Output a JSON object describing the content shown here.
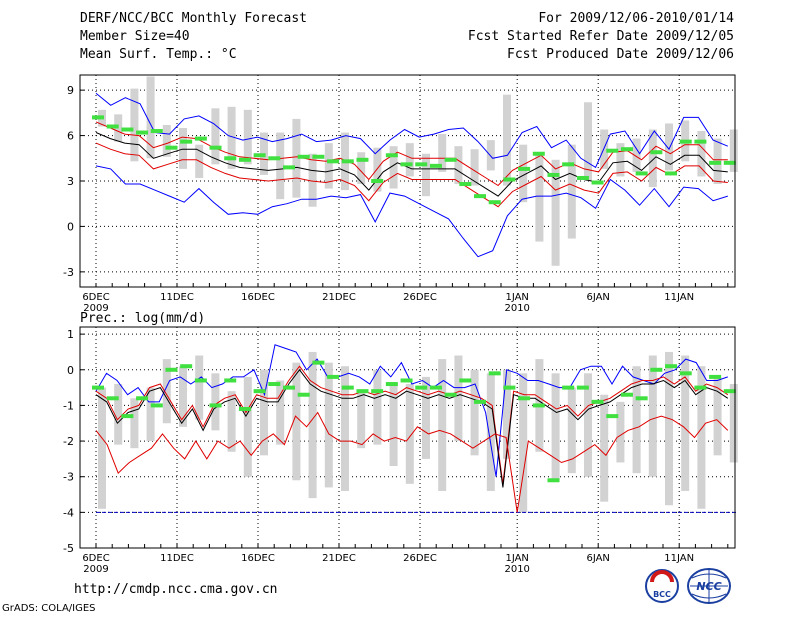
{
  "header": {
    "title": "DERF/NCC/BCC Monthly Forecast",
    "member_size": "Member Size=40",
    "variable_label": "Mean Surf. Temp.: °C",
    "forecast_period": "For 2009/12/06-2010/01/14",
    "refer_date": "Fcst Started Refer Date 2009/12/05",
    "produced_date": "Fcst Produced Date 2009/12/06"
  },
  "footer": {
    "url": "http://cmdp.ncc.cma.gov.cn",
    "grads_credit": "GrADS: COLA/IGES",
    "logo_left": "BCC",
    "logo_right": "NCC"
  },
  "colors": {
    "bar": "#d2d2d2",
    "green": "#40e040",
    "blue": "#0000ff",
    "red": "#e00000",
    "black": "#000000",
    "dash": "#0000c0"
  },
  "chart_data": [
    {
      "type": "line",
      "title": "Mean Surf. Temp.: °C",
      "ylim": [
        -4,
        10
      ],
      "yticks": [
        -3,
        0,
        3,
        6,
        9
      ],
      "xtick_days": [
        0,
        5,
        10,
        15,
        20,
        26,
        31,
        36
      ],
      "xtick_labels": [
        "6DEC",
        "11DEC",
        "16DEC",
        "21DEC",
        "26DEC",
        "1JAN",
        "6JAN",
        "11JAN"
      ],
      "xtick_sublabels": [
        "2009",
        "",
        "",
        "",
        "",
        "2010",
        "",
        ""
      ],
      "n_days": 40,
      "bars_low": [
        6.6,
        5.6,
        4.3,
        4.5,
        4.6,
        3.8,
        3.2,
        4.1,
        3.8,
        4.1,
        3.4,
        1.8,
        1.9,
        1.3,
        2.5,
        2.4,
        2.8,
        2.3,
        2.5,
        3.3,
        2.0,
        3.6,
        2.8,
        2.7,
        3.7,
        2.7,
        1.6,
        -1.0,
        -2.6,
        -0.8,
        3.0,
        3.8,
        3.3,
        3.6,
        2.6,
        3.7,
        4.3,
        3.3,
        2.8,
        3.6
      ],
      "bars_high": [
        7.7,
        7.4,
        9.1,
        9.9,
        6.7,
        6.5,
        5.4,
        7.8,
        7.9,
        7.7,
        6.2,
        6.2,
        7.1,
        4.8,
        5.5,
        6.2,
        4.9,
        5.2,
        5.3,
        5.5,
        4.8,
        6.1,
        5.3,
        5.1,
        5.7,
        8.7,
        5.4,
        4.9,
        4.4,
        5.4,
        8.2,
        6.4,
        5.5,
        5.8,
        6.4,
        6.8,
        7.0,
        6.3,
        5.8,
        6.4
      ],
      "series": [
        {
          "name": "ensemble max",
          "color": "#0000ff",
          "values": [
            8.8,
            8.0,
            8.5,
            8.1,
            6.2,
            6.1,
            7.1,
            7.3,
            6.8,
            6.0,
            5.7,
            5.9,
            5.6,
            5.8,
            6.1,
            5.6,
            5.7,
            6.0,
            5.8,
            4.8,
            5.7,
            6.4,
            5.9,
            6.1,
            6.4,
            6.5,
            5.6,
            4.5,
            4.7,
            6.2,
            6.6,
            5.2,
            5.7,
            4.5,
            3.9,
            6.1,
            6.3,
            4.8,
            6.3,
            5.1,
            7.2,
            7.2,
            5.7,
            5.3
          ]
        },
        {
          "name": "upper spread",
          "color": "#e00000",
          "values": [
            6.9,
            6.5,
            6.1,
            6.0,
            5.2,
            5.5,
            5.9,
            5.8,
            5.3,
            4.9,
            4.6,
            4.5,
            4.4,
            4.5,
            4.6,
            4.4,
            4.3,
            4.5,
            4.1,
            3.1,
            4.3,
            4.9,
            4.5,
            4.5,
            4.5,
            4.5,
            3.9,
            3.3,
            2.7,
            3.7,
            4.2,
            4.7,
            3.8,
            4.2,
            3.8,
            3.6,
            4.9,
            5.0,
            4.4,
            5.3,
            4.8,
            5.4,
            5.4,
            4.4,
            4.4
          ]
        },
        {
          "name": "ensemble mean",
          "color": "#000000",
          "values": [
            6.2,
            5.8,
            5.5,
            5.4,
            4.5,
            4.8,
            5.1,
            5.1,
            4.6,
            4.2,
            3.9,
            3.8,
            3.7,
            3.8,
            3.9,
            3.7,
            3.6,
            3.8,
            3.4,
            2.4,
            3.6,
            4.2,
            3.8,
            3.8,
            3.8,
            3.8,
            3.2,
            2.6,
            2.0,
            3.0,
            3.5,
            4.0,
            3.1,
            3.5,
            3.1,
            2.9,
            4.2,
            4.3,
            3.7,
            4.6,
            4.1,
            4.7,
            4.7,
            3.7,
            3.6
          ]
        },
        {
          "name": "lower spread",
          "color": "#e00000",
          "values": [
            5.5,
            5.1,
            4.8,
            4.7,
            3.8,
            4.1,
            4.4,
            4.4,
            3.9,
            3.5,
            3.2,
            3.1,
            3.0,
            3.1,
            3.2,
            3.0,
            2.9,
            3.1,
            2.7,
            1.7,
            2.9,
            3.5,
            3.1,
            3.1,
            3.1,
            3.1,
            2.5,
            1.9,
            1.3,
            2.3,
            2.8,
            3.3,
            2.4,
            2.8,
            2.4,
            2.2,
            3.5,
            3.6,
            3.0,
            3.9,
            3.4,
            4.0,
            4.0,
            3.0,
            2.9
          ]
        },
        {
          "name": "ensemble min",
          "color": "#0000ff",
          "values": [
            4.0,
            3.8,
            2.8,
            2.8,
            2.4,
            2.0,
            1.6,
            2.5,
            1.6,
            0.8,
            0.9,
            0.8,
            1.3,
            1.5,
            1.8,
            1.8,
            2.0,
            1.9,
            2.1,
            0.3,
            2.2,
            2.0,
            1.5,
            1.0,
            0.5,
            -0.8,
            -2.0,
            -1.6,
            0.7,
            1.8,
            2.0,
            2.0,
            2.2,
            1.9,
            1.2,
            3.1,
            2.4,
            1.4,
            2.5,
            1.3,
            2.6,
            2.5,
            1.7,
            2.0
          ]
        },
        {
          "name": "green markers",
          "color": "#40e040",
          "values": [
            7.2,
            6.6,
            6.4,
            6.2,
            6.3,
            5.2,
            5.6,
            5.8,
            5.2,
            4.5,
            4.4,
            4.7,
            4.5,
            3.9,
            4.6,
            4.6,
            4.3,
            4.3,
            4.4,
            3.0,
            4.7,
            4.1,
            4.1,
            4.0,
            4.4,
            2.8,
            2.0,
            1.6,
            3.1,
            3.8,
            4.8,
            3.4,
            4.1,
            3.2,
            2.9,
            5.0,
            5.1,
            3.5,
            4.9,
            3.5,
            5.6,
            5.6,
            4.2,
            4.2
          ]
        }
      ]
    },
    {
      "type": "line",
      "title": "Prec.: log(mm/d)",
      "ylim": [
        -5,
        1.2
      ],
      "yticks": [
        -5,
        -4,
        -3,
        -2,
        -1,
        0,
        1
      ],
      "xtick_days": [
        0,
        5,
        10,
        15,
        20,
        26,
        31,
        36
      ],
      "xtick_labels": [
        "6DEC",
        "11DEC",
        "16DEC",
        "21DEC",
        "26DEC",
        "1JAN",
        "6JAN",
        "11JAN"
      ],
      "xtick_sublabels": [
        "2009",
        "",
        "",
        "",
        "",
        "2010",
        "",
        ""
      ],
      "n_days": 40,
      "dashed_line": -4,
      "bars_low": [
        -3.9,
        -2.1,
        -2.2,
        -2.0,
        -1.5,
        -1.6,
        -1.4,
        -1.7,
        -2.3,
        -3.0,
        -2.4,
        -2.1,
        -3.1,
        -3.6,
        -3.3,
        -3.4,
        -2.2,
        -2.1,
        -2.7,
        -3.2,
        -2.5,
        -3.4,
        -2.0,
        -2.4,
        -3.4,
        -2.5,
        -4.0,
        -2.3,
        -3.1,
        -2.9,
        -3.0,
        -3.7,
        -2.6,
        -2.9,
        -3.0,
        -3.8,
        -3.4,
        -3.9,
        -2.4,
        -2.6
      ],
      "bars_high": [
        -0.5,
        -0.4,
        -0.8,
        -0.5,
        0.3,
        0.1,
        0.4,
        -0.1,
        -0.6,
        -0.2,
        0.0,
        -0.3,
        0.2,
        0.5,
        0.2,
        0.1,
        -0.6,
        0.0,
        -0.4,
        -0.4,
        -0.2,
        0.3,
        0.4,
        0.0,
        -0.1,
        0.0,
        -0.1,
        0.3,
        -0.1,
        -0.5,
        -0.1,
        -0.7,
        -0.9,
        0.1,
        0.4,
        0.5,
        0.4,
        0.1,
        -0.2,
        -0.4
      ],
      "series": [
        {
          "name": "ensemble max",
          "color": "#0000ff",
          "values": [
            -0.6,
            -0.1,
            -0.3,
            -0.7,
            -0.5,
            -0.9,
            -0.9,
            -0.3,
            -0.2,
            -0.4,
            -0.2,
            -0.5,
            -0.4,
            -0.2,
            -0.2,
            0.0,
            -0.7,
            0.7,
            0.6,
            0.5,
            0.0,
            0.3,
            -0.2,
            -0.2,
            -0.1,
            -0.2,
            -0.4,
            0.1,
            -0.2,
            0.2,
            -0.4,
            -0.3,
            -0.5,
            -0.3,
            -0.5,
            -0.5,
            -0.4,
            -1.2,
            -3.0,
            0.0,
            -0.1,
            -0.3,
            -0.3,
            -0.4,
            -0.5,
            -0.5,
            0.0,
            0.1,
            0.1,
            -0.4,
            0.1,
            -0.2,
            -0.3,
            -0.4,
            -0.1,
            0.0,
            0.3,
            0.2,
            -0.3,
            -0.3,
            -0.2
          ]
        },
        {
          "name": "upper spread",
          "color": "#e00000",
          "values": [
            -0.6,
            -0.8,
            -1.4,
            -1.1,
            -1.0,
            -0.5,
            -0.4,
            -0.9,
            -1.4,
            -1.0,
            -1.6,
            -1.0,
            -0.8,
            -0.7,
            -1.2,
            -0.7,
            -0.8,
            -0.8,
            -0.3,
            0.1,
            -0.3,
            -0.5,
            -0.6,
            -0.7,
            -0.7,
            -0.6,
            -0.7,
            -0.6,
            -0.7,
            -0.5,
            -0.6,
            -0.7,
            -0.6,
            -0.7,
            -0.6,
            -0.7,
            -0.8,
            -1.0,
            -3.2,
            -0.6,
            -0.7,
            -0.7,
            -0.9,
            -1.1,
            -1.0,
            -1.3,
            -1.0,
            -0.9,
            -0.8,
            -0.6,
            -0.4,
            -0.3,
            -0.3,
            -0.2,
            -0.4,
            -0.2,
            -0.6,
            -0.4,
            -0.5,
            -0.7
          ]
        },
        {
          "name": "ensemble mean",
          "color": "#000000",
          "values": [
            -0.7,
            -0.9,
            -1.5,
            -1.2,
            -1.1,
            -0.6,
            -0.5,
            -1.0,
            -1.5,
            -1.1,
            -1.7,
            -1.1,
            -0.9,
            -0.8,
            -1.3,
            -0.8,
            -0.9,
            -0.9,
            -0.4,
            0.0,
            -0.4,
            -0.6,
            -0.7,
            -0.8,
            -0.8,
            -0.7,
            -0.8,
            -0.7,
            -0.8,
            -0.6,
            -0.7,
            -0.8,
            -0.7,
            -0.8,
            -0.7,
            -0.8,
            -0.9,
            -1.1,
            -3.3,
            -0.7,
            -0.8,
            -0.8,
            -1.0,
            -1.2,
            -1.1,
            -1.4,
            -1.1,
            -1.0,
            -0.9,
            -0.7,
            -0.5,
            -0.4,
            -0.4,
            -0.3,
            -0.5,
            -0.3,
            -0.7,
            -0.5,
            -0.6,
            -0.8
          ]
        },
        {
          "name": "lower spread",
          "color": "#e00000",
          "values": [
            -1.7,
            -2.1,
            -2.9,
            -2.6,
            -2.4,
            -2.2,
            -1.8,
            -2.2,
            -2.5,
            -2.0,
            -2.5,
            -2.0,
            -2.2,
            -2.0,
            -2.4,
            -2.0,
            -1.8,
            -2.1,
            -1.3,
            -1.6,
            -1.2,
            -1.8,
            -2.0,
            -2.0,
            -2.1,
            -1.8,
            -2.0,
            -1.9,
            -2.0,
            -1.6,
            -1.8,
            -1.7,
            -1.8,
            -2.0,
            -2.2,
            -2.0,
            -1.8,
            -1.9,
            -4.0,
            -2.0,
            -2.2,
            -2.4,
            -2.6,
            -2.5,
            -2.3,
            -2.1,
            -2.4,
            -1.9,
            -1.7,
            -1.6,
            -1.4,
            -1.3,
            -1.4,
            -1.6,
            -1.9,
            -1.5,
            -1.4,
            -1.7
          ]
        },
        {
          "name": "green markers",
          "color": "#40e040",
          "values": [
            -0.5,
            -0.8,
            -1.3,
            -0.8,
            -1.0,
            0.0,
            0.1,
            -0.3,
            -1.0,
            -0.3,
            -1.1,
            -0.6,
            -0.4,
            -0.5,
            -0.7,
            0.2,
            -0.2,
            -0.5,
            -0.6,
            -0.6,
            -0.4,
            -0.3,
            -0.5,
            -0.5,
            -0.7,
            -0.3,
            -0.9,
            -0.1,
            -0.5,
            -0.8,
            -1.0,
            -3.1,
            -0.5,
            -0.5,
            -0.9,
            -1.3,
            -0.7,
            -0.8,
            0.0,
            0.1,
            -0.1,
            -0.5,
            -0.2,
            -0.6
          ]
        }
      ]
    }
  ]
}
